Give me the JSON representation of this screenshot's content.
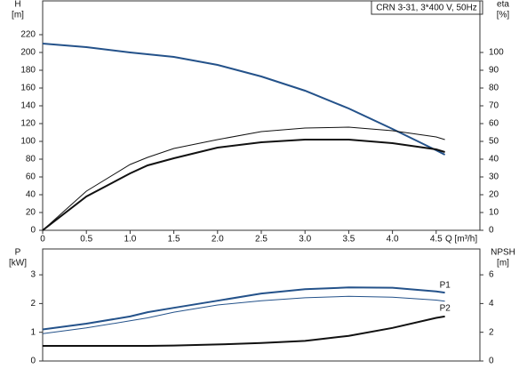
{
  "chart_data": [
    {
      "type": "line",
      "title": "CRN 3-31, 3*400 V, 50Hz",
      "xlabel": "Q [m³/h]",
      "y_label": [
        "H",
        "[m]"
      ],
      "y2_label": [
        "eta",
        "[%]"
      ],
      "x": [
        0,
        0.5,
        1.0,
        1.2,
        1.5,
        2.0,
        2.5,
        3.0,
        3.5,
        4.0,
        4.5,
        4.6
      ],
      "xlim": [
        0,
        5.0
      ],
      "xticks": [
        0,
        0.5,
        {
          "value": 1,
          "label": "1.0"
        },
        1.5,
        {
          "value": 2,
          "label": "2.0"
        },
        2.5,
        {
          "value": 3,
          "label": "3.0"
        },
        3.5,
        {
          "value": 4,
          "label": "4.0"
        },
        4.5
      ],
      "ylim": [
        0,
        258
      ],
      "yticks": [
        0,
        20,
        40,
        60,
        80,
        100,
        120,
        140,
        160,
        180,
        200,
        220
      ],
      "y2lim": [
        0,
        129
      ],
      "y2ticks": [
        0,
        10,
        20,
        30,
        40,
        50,
        60,
        70,
        80,
        90,
        100
      ],
      "series": [
        {
          "color": "#24528a",
          "width": 2,
          "values": [
            210,
            206,
            200,
            198,
            195,
            186,
            173,
            157,
            137,
            114,
            90,
            85
          ]
        },
        {
          "color": "#111111",
          "width": 1,
          "axis": "y2",
          "values": [
            0,
            22,
            37,
            41,
            46,
            51,
            55.5,
            57.5,
            58,
            56,
            52.5,
            51
          ]
        },
        {
          "color": "#111111",
          "width": 2,
          "axis": "y2",
          "values": [
            0,
            19,
            32,
            36.5,
            40.5,
            46.5,
            49.5,
            51,
            51,
            49,
            45.5,
            44
          ]
        }
      ]
    },
    {
      "type": "line",
      "y_label": [
        "P",
        "[kW]"
      ],
      "y2_label": [
        "NPSH",
        "[m]"
      ],
      "x": [
        0,
        0.5,
        1.0,
        1.2,
        1.5,
        2.0,
        2.5,
        3.0,
        3.5,
        4.0,
        4.5,
        4.6
      ],
      "xlim": [
        0,
        5.0
      ],
      "ylim": [
        0,
        3.9
      ],
      "yticks": [
        0,
        1,
        2,
        3
      ],
      "y2lim": [
        0,
        7.8
      ],
      "y2ticks": [
        0,
        2,
        4,
        6
      ],
      "series": [
        {
          "name": "P1",
          "color": "#24528a",
          "width": 2,
          "values": [
            1.1,
            1.3,
            1.55,
            1.7,
            1.85,
            2.1,
            2.35,
            2.5,
            2.56,
            2.55,
            2.42,
            2.38
          ]
        },
        {
          "name": "P2",
          "color": "#24528a",
          "width": 1,
          "values": [
            0.95,
            1.15,
            1.4,
            1.5,
            1.7,
            1.95,
            2.1,
            2.2,
            2.25,
            2.22,
            2.12,
            2.08
          ]
        },
        {
          "color": "#111111",
          "width": 2,
          "axis": "y2",
          "values": [
            1.05,
            1.05,
            1.05,
            1.05,
            1.08,
            1.15,
            1.25,
            1.4,
            1.75,
            2.3,
            3.0,
            3.1
          ]
        }
      ]
    }
  ]
}
